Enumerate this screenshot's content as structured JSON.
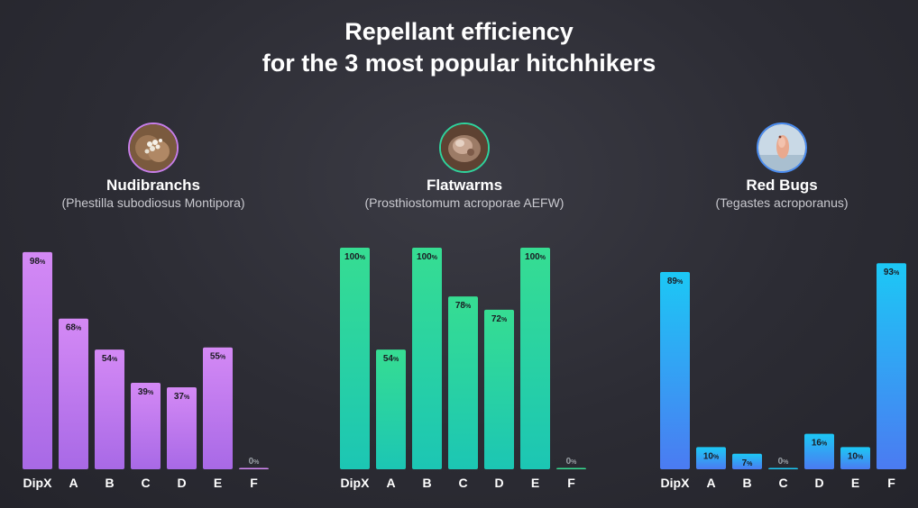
{
  "title": {
    "line1": "Repellant efficiency",
    "line2": "for the 3 most popular hitchhikers"
  },
  "chart_data": [
    {
      "type": "bar",
      "title": "Nudibranchs",
      "subtitle": "(Phestilla subodiosus Montipora)",
      "icon": "nudibranch-photo-icon",
      "color_top": "#d489f5",
      "color_bottom": "#a869e6",
      "border_color": "#c77ee8",
      "categories": [
        "DipX",
        "A",
        "B",
        "C",
        "D",
        "E",
        "F"
      ],
      "values": [
        98,
        68,
        54,
        39,
        37,
        55,
        0
      ],
      "unit": "%",
      "ylim": [
        0,
        100
      ]
    },
    {
      "type": "bar",
      "title": "Flatwarms",
      "subtitle": "(Prosthiostomum acroporae AEFW)",
      "icon": "flatworm-photo-icon",
      "color_top": "#36dd92",
      "color_bottom": "#1cc6b4",
      "border_color": "#2fd39c",
      "categories": [
        "DipX",
        "A",
        "B",
        "C",
        "D",
        "E",
        "F"
      ],
      "values": [
        100,
        54,
        100,
        78,
        72,
        100,
        0
      ],
      "unit": "%",
      "ylim": [
        0,
        100
      ]
    },
    {
      "type": "bar",
      "title": "Red Bugs",
      "subtitle": "(Tegastes acroporanus)",
      "icon": "red-bug-photo-icon",
      "color_top": "#1cc8f5",
      "color_bottom": "#4b7bf2",
      "border_color": "#4a8cf0",
      "categories": [
        "DipX",
        "A",
        "B",
        "C",
        "D",
        "E",
        "F"
      ],
      "values": [
        89,
        10,
        7,
        0,
        16,
        10,
        93
      ],
      "unit": "%",
      "ylim": [
        0,
        100
      ]
    }
  ]
}
